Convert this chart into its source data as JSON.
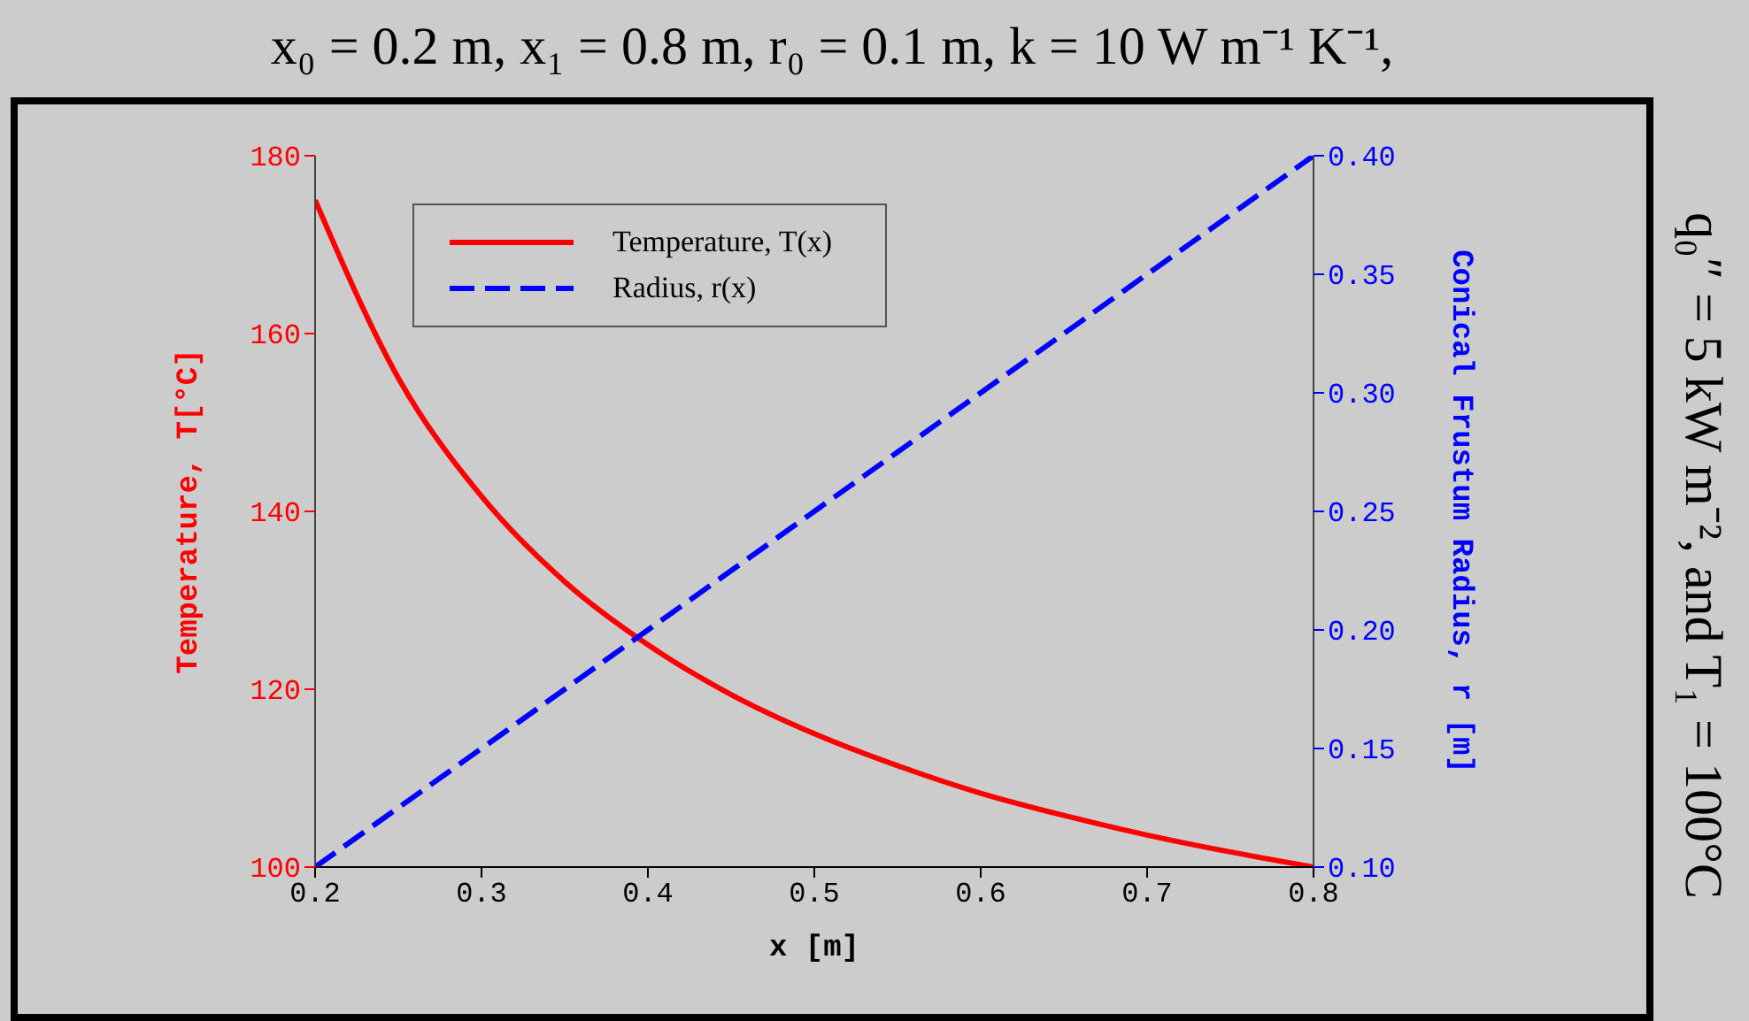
{
  "chart_data": {
    "type": "line",
    "title": "x₀ = 0.2 m, x₁ = 0.8 m, r₀ = 0.1 m, k = 10 W m⁻¹ K⁻¹,",
    "subtitle": "q₀″ = 5 kW m⁻², and T₁ = 100°C",
    "xlabel": "x [m]",
    "ylabel": "Temperature, T[°C]",
    "y2label": "Conical Frustum Radius, r [m]",
    "x": [
      0.2,
      0.25,
      0.3,
      0.35,
      0.4,
      0.45,
      0.5,
      0.55,
      0.6,
      0.65,
      0.7,
      0.75,
      0.8
    ],
    "series": [
      {
        "name": "Temperature, T(x)",
        "color": "#ff0000",
        "line_style": "solid",
        "values": [
          175,
          155,
          141.7,
          132.1,
          125,
          119.4,
          115,
          111.4,
          108.3,
          105.8,
          103.6,
          101.7,
          100
        ]
      },
      {
        "name": "Radius, r(x)",
        "color": "#0000ff",
        "line_style": "dashed",
        "axis": "y2",
        "values": [
          0.1,
          0.125,
          0.15,
          0.175,
          0.2,
          0.225,
          0.25,
          0.275,
          0.3,
          0.325,
          0.35,
          0.375,
          0.4
        ]
      }
    ],
    "xlim": [
      0.2,
      0.8
    ],
    "xticks": [
      0.2,
      0.3,
      0.4,
      0.5,
      0.6,
      0.7,
      0.8
    ],
    "ylim": [
      100,
      180
    ],
    "yticks": [
      100,
      120,
      140,
      160,
      180
    ],
    "y2lim": [
      0.1,
      0.4
    ],
    "y2ticks": [
      {
        "value": 0.1,
        "label": "0.10"
      },
      0.15,
      {
        "value": 0.2,
        "label": "0.20"
      },
      0.25,
      {
        "value": 0.3,
        "label": "0.30"
      },
      0.35,
      {
        "value": 0.4,
        "label": "0.40"
      }
    ],
    "legend": "top left",
    "grid": false
  }
}
